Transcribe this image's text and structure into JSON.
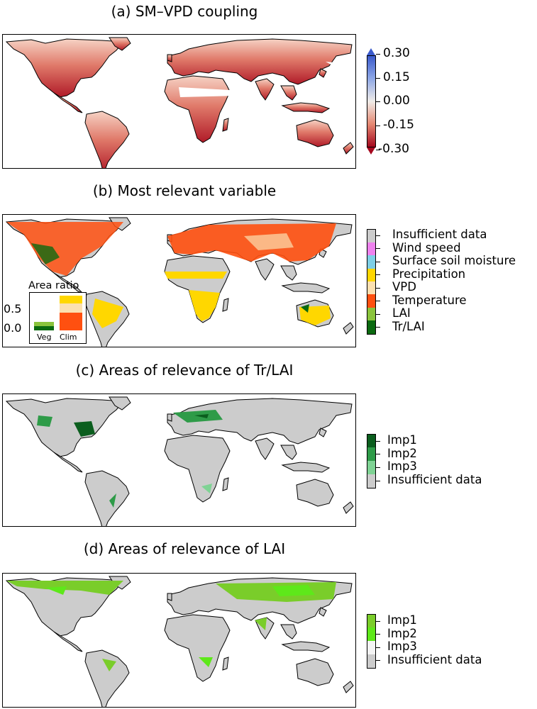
{
  "panels": {
    "a": {
      "title": "(a) SM–VPD coupling",
      "colorbar": {
        "ticks": [
          "0.30",
          "0.15",
          "0.00",
          "-0.15",
          "-0.30"
        ],
        "colors": {
          "high": "#3b5bcc",
          "mid": "#f0ece8",
          "low": "#a5081e"
        }
      }
    },
    "b": {
      "title": "(b) Most relevant variable",
      "legend": [
        {
          "label": "Insufficient data",
          "color": "#cccccc"
        },
        {
          "label": "Wind speed",
          "color": "#ee82ee"
        },
        {
          "label": "Surface soil moisture",
          "color": "#7ecfe6"
        },
        {
          "label": "Precipitation",
          "color": "#ffd700"
        },
        {
          "label": "VPD",
          "color": "#fbe0b0"
        },
        {
          "label": "Temperature",
          "color": "#ff5010"
        },
        {
          "label": "LAI",
          "color": "#8ac43c"
        },
        {
          "label": "Tr/LAI",
          "color": "#0b6a10"
        }
      ],
      "inset": {
        "title": "Area ratio",
        "y_ticks": [
          "0.5",
          "0.0"
        ],
        "categories": [
          "Veg",
          "Clim"
        ],
        "veg": {
          "tr_lai": 0.08,
          "lai": 0.08
        },
        "clim": {
          "temperature": 0.36,
          "vpd": 0.2,
          "precipitation": 0.22
        }
      }
    },
    "c": {
      "title": "(c) Areas of relevance of Tr/LAI",
      "legend": [
        {
          "label": "Imp1",
          "color": "#0b5e1e"
        },
        {
          "label": "Imp2",
          "color": "#2e9b48"
        },
        {
          "label": "Imp3",
          "color": "#7fd394"
        },
        {
          "label": "Insufficient data",
          "color": "#cccccc"
        }
      ]
    },
    "d": {
      "title": "(d) Areas of relevance of LAI",
      "legend": [
        {
          "label": "Imp1",
          "color": "#7acd2a"
        },
        {
          "label": "Imp2",
          "color": "#5ee81a"
        },
        {
          "label": "Imp3",
          "color": "#f4f4f4"
        },
        {
          "label": "Insufficient data",
          "color": "#cccccc"
        }
      ]
    }
  }
}
